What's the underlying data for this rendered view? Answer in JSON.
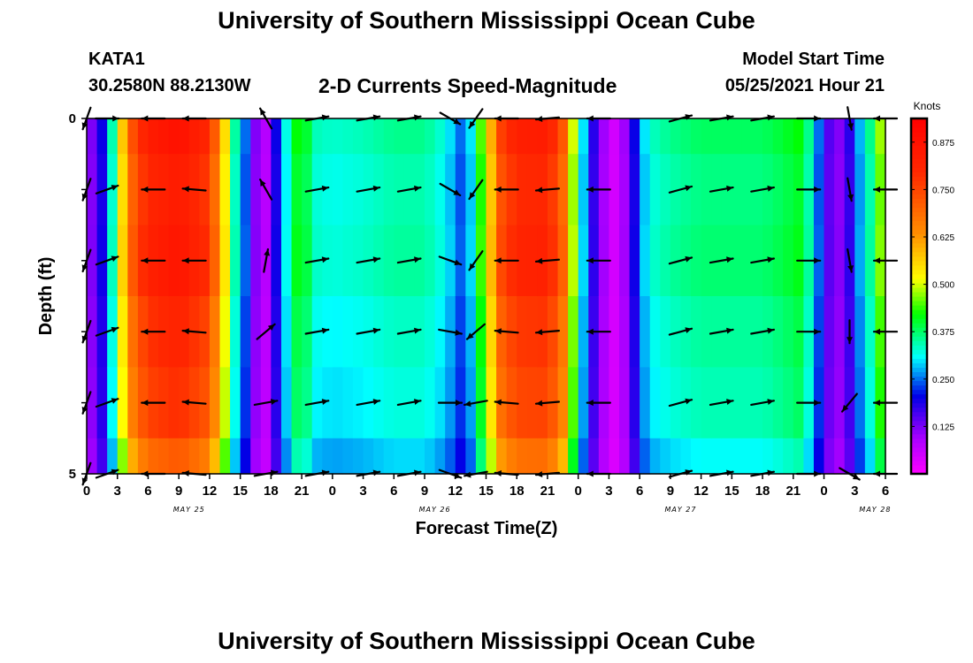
{
  "header": {
    "title": "University of Southern Mississippi Ocean Cube",
    "station": "KATA1",
    "coords": "30.2580N  88.2130W",
    "subtitle": "2-D Currents Speed-Magnitude",
    "model_start_label": "Model Start Time",
    "model_start_value": "05/25/2021 Hour 21"
  },
  "footer": {
    "title": "University of Southern Mississippi Ocean Cube"
  },
  "chart_data": {
    "type": "heatmap",
    "xlabel": "Forecast Time(Z)",
    "ylabel": "Depth (ft)",
    "x_unit": "forecast hour from 05/25 00Z",
    "xlim": [
      0,
      78
    ],
    "ylim": [
      0,
      5
    ],
    "y_ticks": [
      "0",
      "5"
    ],
    "x_ticks": [
      {
        "h": 0,
        "label": "0"
      },
      {
        "h": 3,
        "label": "3"
      },
      {
        "h": 6,
        "label": "6"
      },
      {
        "h": 9,
        "label": "9"
      },
      {
        "h": 12,
        "label": "12"
      },
      {
        "h": 15,
        "label": "15"
      },
      {
        "h": 18,
        "label": "18"
      },
      {
        "h": 21,
        "label": "21"
      },
      {
        "h": 24,
        "label": "0"
      },
      {
        "h": 27,
        "label": "3"
      },
      {
        "h": 30,
        "label": "6"
      },
      {
        "h": 33,
        "label": "9"
      },
      {
        "h": 36,
        "label": "12"
      },
      {
        "h": 39,
        "label": "15"
      },
      {
        "h": 42,
        "label": "18"
      },
      {
        "h": 45,
        "label": "21"
      },
      {
        "h": 48,
        "label": "0"
      },
      {
        "h": 51,
        "label": "3"
      },
      {
        "h": 54,
        "label": "6"
      },
      {
        "h": 57,
        "label": "9"
      },
      {
        "h": 60,
        "label": "12"
      },
      {
        "h": 63,
        "label": "15"
      },
      {
        "h": 66,
        "label": "18"
      },
      {
        "h": 69,
        "label": "21"
      },
      {
        "h": 72,
        "label": "0"
      },
      {
        "h": 75,
        "label": "3"
      },
      {
        "h": 78,
        "label": "6"
      }
    ],
    "day_labels": [
      {
        "h": 10,
        "label": "MAY 25"
      },
      {
        "h": 34,
        "label": "MAY 26"
      },
      {
        "h": 58,
        "label": "MAY 27"
      },
      {
        "h": 77,
        "label": "MAY 28"
      }
    ],
    "colorbar": {
      "label": "Knots",
      "min": 0.0,
      "max": 0.9375,
      "ticks": [
        "0.125",
        "0.250",
        "0.375",
        "0.500",
        "0.625",
        "0.750",
        "0.875"
      ]
    },
    "speed_profile_knots": [
      [
        0,
        0.1
      ],
      [
        1,
        0.15
      ],
      [
        2,
        0.25
      ],
      [
        2.8,
        0.4
      ],
      [
        3.6,
        0.6
      ],
      [
        4.6,
        0.75
      ],
      [
        6,
        0.84
      ],
      [
        9,
        0.88
      ],
      [
        12,
        0.8
      ],
      [
        13.5,
        0.55
      ],
      [
        14.5,
        0.35
      ],
      [
        15.5,
        0.25
      ],
      [
        16.5,
        0.12
      ],
      [
        17.5,
        0.08
      ],
      [
        18.5,
        0.2
      ],
      [
        19.5,
        0.32
      ],
      [
        20.5,
        0.42
      ],
      [
        21.5,
        0.4
      ],
      [
        22.5,
        0.34
      ],
      [
        24,
        0.33
      ],
      [
        27,
        0.34
      ],
      [
        30,
        0.36
      ],
      [
        33,
        0.36
      ],
      [
        35,
        0.32
      ],
      [
        36.5,
        0.25
      ],
      [
        37.5,
        0.3
      ],
      [
        38.5,
        0.45
      ],
      [
        39.5,
        0.6
      ],
      [
        40.5,
        0.76
      ],
      [
        42,
        0.83
      ],
      [
        45,
        0.84
      ],
      [
        46.5,
        0.72
      ],
      [
        47.5,
        0.5
      ],
      [
        48.5,
        0.3
      ],
      [
        49.5,
        0.18
      ],
      [
        50.5,
        0.1
      ],
      [
        51.5,
        0.05
      ],
      [
        52.5,
        0.1
      ],
      [
        53.5,
        0.2
      ],
      [
        54.5,
        0.3
      ],
      [
        55.5,
        0.34
      ],
      [
        57,
        0.36
      ],
      [
        60,
        0.38
      ],
      [
        63,
        0.38
      ],
      [
        66,
        0.38
      ],
      [
        68,
        0.4
      ],
      [
        69.5,
        0.42
      ],
      [
        70.5,
        0.36
      ],
      [
        71.5,
        0.25
      ],
      [
        72.5,
        0.15
      ],
      [
        73.5,
        0.12
      ],
      [
        74.5,
        0.18
      ],
      [
        75.5,
        0.28
      ],
      [
        76.5,
        0.36
      ],
      [
        77.3,
        0.45
      ],
      [
        78,
        0.55
      ]
    ],
    "vector_depths": [
      0,
      1,
      2,
      3,
      4,
      5
    ],
    "vector_columns": [
      {
        "h": 0,
        "dir": [
          200,
          200,
          200,
          200,
          200,
          200
        ]
      },
      {
        "h": 2,
        "dir": [
          90,
          70,
          70,
          70,
          70,
          70
        ]
      },
      {
        "h": 6.5,
        "dir": [
          270,
          270,
          270,
          270,
          270,
          270
        ]
      },
      {
        "h": 10.5,
        "dir": [
          270,
          275,
          270,
          275,
          275,
          275
        ]
      },
      {
        "h": 17.5,
        "dir": [
          330,
          330,
          10,
          50,
          80,
          80
        ]
      },
      {
        "h": 22.5,
        "dir": [
          80,
          80,
          80,
          80,
          80,
          80
        ]
      },
      {
        "h": 27.5,
        "dir": [
          80,
          80,
          80,
          80,
          80,
          80
        ]
      },
      {
        "h": 31.5,
        "dir": [
          80,
          80,
          80,
          80,
          80,
          80
        ]
      },
      {
        "h": 35.5,
        "dir": [
          120,
          120,
          110,
          100,
          90,
          110
        ]
      },
      {
        "h": 38,
        "dir": [
          215,
          215,
          215,
          230,
          260,
          260
        ]
      },
      {
        "h": 41,
        "dir": [
          270,
          270,
          270,
          275,
          275,
          275
        ]
      },
      {
        "h": 45,
        "dir": [
          265,
          265,
          265,
          265,
          265,
          265
        ]
      },
      {
        "h": 50,
        "dir": [
          270,
          270,
          270,
          270,
          270,
          270
        ]
      },
      {
        "h": 58,
        "dir": [
          75,
          75,
          75,
          75,
          75,
          75
        ]
      },
      {
        "h": 62,
        "dir": [
          80,
          80,
          80,
          80,
          80,
          80
        ]
      },
      {
        "h": 66,
        "dir": [
          80,
          80,
          80,
          80,
          80,
          80
        ]
      },
      {
        "h": 70.5,
        "dir": [
          90,
          90,
          90,
          90,
          90,
          90
        ]
      },
      {
        "h": 74.5,
        "dir": [
          170,
          170,
          170,
          180,
          220,
          120
        ]
      },
      {
        "h": 78,
        "dir": [
          270,
          270,
          270,
          270,
          270,
          270
        ]
      }
    ]
  }
}
